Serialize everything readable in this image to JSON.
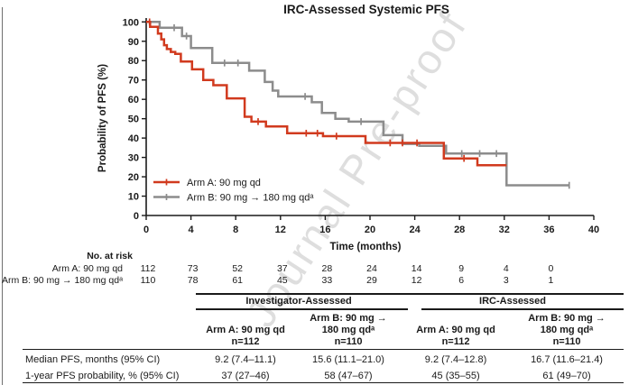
{
  "watermark": "Journal Pre-proof",
  "chart_data": {
    "type": "line",
    "subtype": "kaplan_meier_step",
    "title": "IRC-Assessed Systemic PFS",
    "xlabel": "Time (months)",
    "ylabel": "Probability of PFS (%)",
    "xlim": [
      0,
      40
    ],
    "ylim": [
      0,
      100
    ],
    "x_ticks": [
      0,
      4,
      8,
      12,
      16,
      20,
      24,
      28,
      32,
      36,
      40
    ],
    "y_ticks": [
      0,
      10,
      20,
      30,
      40,
      50,
      60,
      70,
      80,
      90,
      100
    ],
    "grid": false,
    "legend_position": "lower-left-inside",
    "series": [
      {
        "name": "Arm A: 90 mg qd",
        "color": "#d13a1e",
        "steps": [
          [
            0,
            100
          ],
          [
            0.35,
            97.5
          ],
          [
            1.05,
            94
          ],
          [
            1.35,
            91
          ],
          [
            1.6,
            88
          ],
          [
            1.85,
            86
          ],
          [
            2.2,
            84.5
          ],
          [
            2.6,
            83.5
          ],
          [
            3.1,
            79.5
          ],
          [
            4.1,
            75.5
          ],
          [
            5.1,
            70
          ],
          [
            6.0,
            67.3
          ],
          [
            7.2,
            60.5
          ],
          [
            8.8,
            51
          ],
          [
            9.4,
            48.5
          ],
          [
            10.7,
            46
          ],
          [
            12.6,
            42.5
          ],
          [
            15.8,
            41
          ],
          [
            19.6,
            37.5
          ],
          [
            26.6,
            29.5
          ],
          [
            29.6,
            26
          ],
          [
            32.2,
            26
          ]
        ],
        "censor_marks": [
          [
            0.3,
            100
          ],
          [
            10.0,
            48.5
          ],
          [
            14.3,
            42.5
          ],
          [
            15.3,
            42.5
          ],
          [
            17.0,
            41
          ],
          [
            21.8,
            37.5
          ],
          [
            22.9,
            37.5
          ],
          [
            24.2,
            37.5
          ],
          [
            28.4,
            29.5
          ]
        ]
      },
      {
        "name": "Arm B: 90 mg → 180 mg qdᵃ",
        "color": "#8c8c8c",
        "steps": [
          [
            0,
            100
          ],
          [
            1.2,
            97
          ],
          [
            3.2,
            92.7
          ],
          [
            4.0,
            86.5
          ],
          [
            5.9,
            78.8
          ],
          [
            9.2,
            74.8
          ],
          [
            10.6,
            69
          ],
          [
            11.3,
            64.5
          ],
          [
            11.8,
            61.5
          ],
          [
            14.8,
            58.5
          ],
          [
            15.7,
            53
          ],
          [
            16.9,
            50
          ],
          [
            18.1,
            48.5
          ],
          [
            21.2,
            41.5
          ],
          [
            22.9,
            37
          ],
          [
            24.4,
            36
          ],
          [
            26.8,
            32
          ],
          [
            32.2,
            15.6
          ],
          [
            37.8,
            15.6
          ]
        ],
        "censor_marks": [
          [
            2.5,
            97
          ],
          [
            3.6,
            92.7
          ],
          [
            7.0,
            78.8
          ],
          [
            8.2,
            78.8
          ],
          [
            14.2,
            61.5
          ],
          [
            19.2,
            48.5
          ],
          [
            28.2,
            32
          ],
          [
            29.8,
            32
          ],
          [
            31.3,
            32
          ],
          [
            37.8,
            15.6
          ]
        ]
      }
    ]
  },
  "risk_table": {
    "heading": "No. at risk",
    "times": [
      0,
      4,
      8,
      12,
      16,
      20,
      24,
      28,
      32,
      36
    ],
    "rows": [
      {
        "label": "Arm A: 90 mg qd",
        "values": [
          112,
          73,
          52,
          37,
          28,
          24,
          14,
          9,
          4,
          0
        ]
      },
      {
        "label": "Arm B: 90 mg → 180 mg qdᵃ",
        "values": [
          110,
          78,
          61,
          45,
          33,
          29,
          12,
          6,
          3,
          1
        ]
      }
    ]
  },
  "summary_table": {
    "group_headers": [
      "Investigator-Assessed",
      "IRC-Assessed"
    ],
    "col_headers": [
      "Arm A: 90 mg qd\nn=112",
      "Arm B: 90 mg →\n180 mg qdᵃ\nn=110",
      "Arm A: 90 mg qd\nn=112",
      "Arm B: 90 mg →\n180 mg qdᵃ\nn=110"
    ],
    "rows": [
      {
        "label": "Median PFS, months (95% CI)",
        "values": [
          "9.2 (7.4–11.1)",
          "15.6 (11.1–21.0)",
          "9.2 (7.4–12.8)",
          "16.7 (11.6–21.4)"
        ]
      },
      {
        "label": "1-year PFS probability, % (95% CI)",
        "values": [
          "37 (27–46)",
          "58 (47–67)",
          "45 (35–55)",
          "61 (49–70)"
        ]
      }
    ]
  }
}
